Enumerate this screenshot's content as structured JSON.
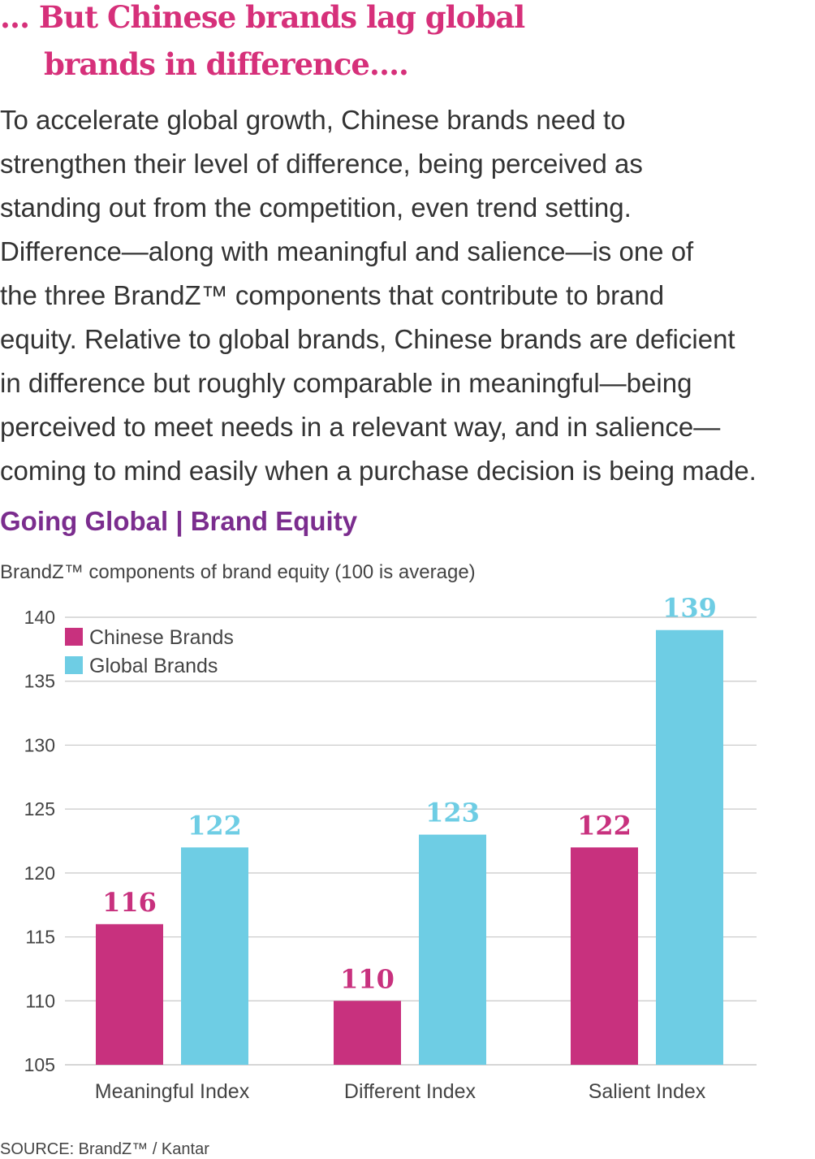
{
  "headline": {
    "line1": "… But Chinese brands lag global",
    "line2": "brands in difference…."
  },
  "body_lines": [
    "To accelerate global growth, Chinese brands need to",
    "strengthen their level of difference, being perceived as",
    "standing out from the competition, even trend setting.",
    "Difference—along with meaningful and salience—is one of",
    "the three BrandZ™ components that contribute to brand",
    "equity. Relative to global brands, Chinese brands are deficient",
    "in difference but roughly comparable in meaningful—being",
    "perceived to meet needs in a relevant way, and in salience—",
    "coming to mind easily when a purchase decision is being made."
  ],
  "section_title": "Going Global | Brand Equity",
  "source": "SOURCE: BrandZ™ / Kantar",
  "colors": {
    "chinese": "#c8317e",
    "global": "#6ecde4",
    "headline": "#d6307a",
    "section": "#7b2d8e",
    "grid": "#c8c8c8"
  },
  "chart_data": {
    "type": "bar",
    "title": "",
    "subtitle": "BrandZ™ components of brand equity (100 is average)",
    "categories": [
      "Meaningful Index",
      "Different Index",
      "Salient Index"
    ],
    "series": [
      {
        "name": "Chinese Brands",
        "values": [
          116,
          110,
          122
        ]
      },
      {
        "name": "Global Brands",
        "values": [
          122,
          123,
          139
        ]
      }
    ],
    "ylim": [
      105,
      140
    ],
    "yticks": [
      105,
      110,
      115,
      120,
      125,
      130,
      135,
      140
    ],
    "grid": true,
    "legend": "top-left",
    "data_labels": true
  }
}
